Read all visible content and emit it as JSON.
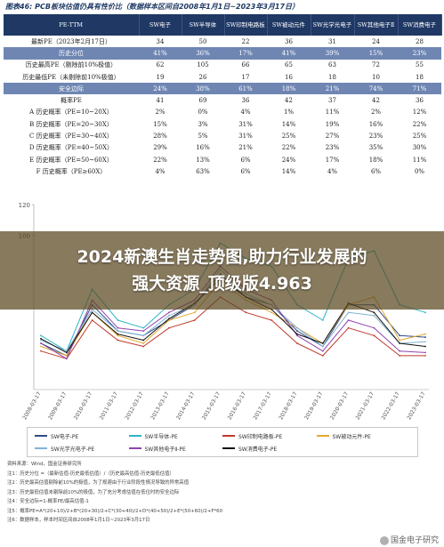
{
  "figure_title": "图表46: PCB板块估值仍具有性价比（数据样本区间自2008年1月1日~2023年3月17日）",
  "table": {
    "headers": [
      "PE-TTM",
      "SW电子",
      "SW半导体",
      "SW印制电路板",
      "SW被动元件",
      "SW光学光电子",
      "SW其他电子Ⅱ",
      "SW消费电子"
    ],
    "rows": [
      {
        "label": "最新PE（2023年2月17日）",
        "values": [
          "34",
          "50",
          "22",
          "36",
          "31",
          "24",
          "28"
        ],
        "highlight": false
      },
      {
        "label": "历史分位",
        "values": [
          "41%",
          "36%",
          "17%",
          "41%",
          "39%",
          "15%",
          "23%"
        ],
        "highlight": true
      },
      {
        "label": "历史最高PE（剔除前10%极值）",
        "values": [
          "62",
          "105",
          "66",
          "65",
          "63",
          "72",
          "55"
        ],
        "highlight": false
      },
      {
        "label": "历史最低PE（未剔除前10%极值）",
        "values": [
          "19",
          "26",
          "17",
          "16",
          "18",
          "10",
          "18"
        ],
        "highlight": false
      },
      {
        "label": "安全边际",
        "values": [
          "24%",
          "38%",
          "61%",
          "18%",
          "21%",
          "74%",
          "71%"
        ],
        "highlight": true
      },
      {
        "label": "概率PE",
        "values": [
          "41",
          "69",
          "36",
          "42",
          "37",
          "42",
          "36"
        ],
        "highlight": false
      },
      {
        "label": "A 历史概率（PE=10~20X）",
        "values": [
          "2%",
          "0%",
          "4%",
          "1%",
          "11%",
          "2%",
          "12%"
        ],
        "highlight": false
      },
      {
        "label": "B 历史概率（PE=20~30X）",
        "values": [
          "15%",
          "3%",
          "31%",
          "14%",
          "19%",
          "16%",
          "22%"
        ],
        "highlight": false
      },
      {
        "label": "C 历史概率（PE=30~40X）",
        "values": [
          "28%",
          "5%",
          "31%",
          "25%",
          "27%",
          "23%",
          "25%"
        ],
        "highlight": false
      },
      {
        "label": "D 历史概率（PE=40~50X）",
        "values": [
          "29%",
          "16%",
          "21%",
          "22%",
          "23%",
          "35%",
          "30%"
        ],
        "highlight": false
      },
      {
        "label": "E 历史概率（PE=50~60X）",
        "values": [
          "22%",
          "13%",
          "6%",
          "24%",
          "17%",
          "18%",
          "11%"
        ],
        "highlight": false
      },
      {
        "label": "F 历史概率（PE≥60X）",
        "values": [
          "4%",
          "63%",
          "6%",
          "14%",
          "4%",
          "6%",
          "0%"
        ],
        "highlight": false
      }
    ]
  },
  "banner": {
    "line1": "2024新澳生肖走势图,助力行业发展的",
    "line2": "强大资源_顶级版4.963"
  },
  "chart_data": {
    "type": "line",
    "ylim": [
      0,
      120
    ],
    "yticks": [
      "120",
      "100"
    ],
    "x": [
      "2008-03-17",
      "2009-03-17",
      "2010-03-17",
      "2011-03-17",
      "2012-03-17",
      "2013-03-17",
      "2014-03-17",
      "2015-03-17",
      "2016-03-17",
      "2017-03-17",
      "2018-03-17",
      "2019-03-17",
      "2020-03-17",
      "2021-03-17",
      "2022-03-17",
      "2023-03-17"
    ],
    "series": [
      {
        "name": "SW电子-PE",
        "color": "#2e4a87",
        "values": [
          30,
          22,
          55,
          38,
          35,
          45,
          55,
          75,
          60,
          55,
          38,
          28,
          55,
          55,
          35,
          34
        ]
      },
      {
        "name": "SW半导体-PE",
        "color": "#2cb5c8",
        "values": [
          35,
          25,
          65,
          45,
          40,
          55,
          65,
          95,
          85,
          80,
          55,
          45,
          85,
          90,
          55,
          50
        ]
      },
      {
        "name": "SW印制电路板-PE",
        "color": "#c0392b",
        "values": [
          25,
          20,
          45,
          32,
          28,
          40,
          45,
          60,
          50,
          45,
          30,
          22,
          40,
          35,
          22,
          22
        ]
      },
      {
        "name": "SW被动元件-PE",
        "color": "#e1a932",
        "values": [
          28,
          22,
          50,
          35,
          30,
          45,
          50,
          70,
          58,
          50,
          40,
          30,
          55,
          60,
          32,
          36
        ]
      },
      {
        "name": "SW光学光电子-PE",
        "color": "#7fb3d5",
        "values": [
          32,
          25,
          52,
          38,
          35,
          48,
          55,
          78,
          62,
          55,
          40,
          28,
          50,
          48,
          30,
          31
        ]
      },
      {
        "name": "SW其他电子Ⅱ-PE",
        "color": "#8e44ad",
        "values": [
          30,
          20,
          58,
          40,
          38,
          50,
          58,
          80,
          65,
          58,
          35,
          25,
          45,
          40,
          25,
          24
        ]
      },
      {
        "name": "SW消费电子-PE",
        "color": "#111111",
        "values": [
          33,
          24,
          50,
          36,
          32,
          46,
          56,
          72,
          60,
          52,
          36,
          30,
          56,
          50,
          30,
          28
        ]
      }
    ]
  },
  "notes": [
    "资料来源：Wind，国金证券研究所",
    "注1：历史分位 =（最新估值-历史最低估值）/（历史最高估值-历史最低估值）",
    "注2：历史最高估值剔除前10%的极值，为了规避由于行业阶段性情况导致的异常高值",
    "注3：历史最低估值未剔除前10%的极值，为了充分考虑估值在低位时的安全边际",
    "注4：安全边际=1-概率PE/最高估值-1",
    "注5：概率PE=A*(20+10)/2+B*(20+30)/2+C*(30+40)/2+D*(40+50)/2+E*(50+60)/2+F*60",
    "注6：数据样本，样本时间区间自2008年1月1日~2023年3月17日"
  ],
  "watermark": "国金电子研究"
}
